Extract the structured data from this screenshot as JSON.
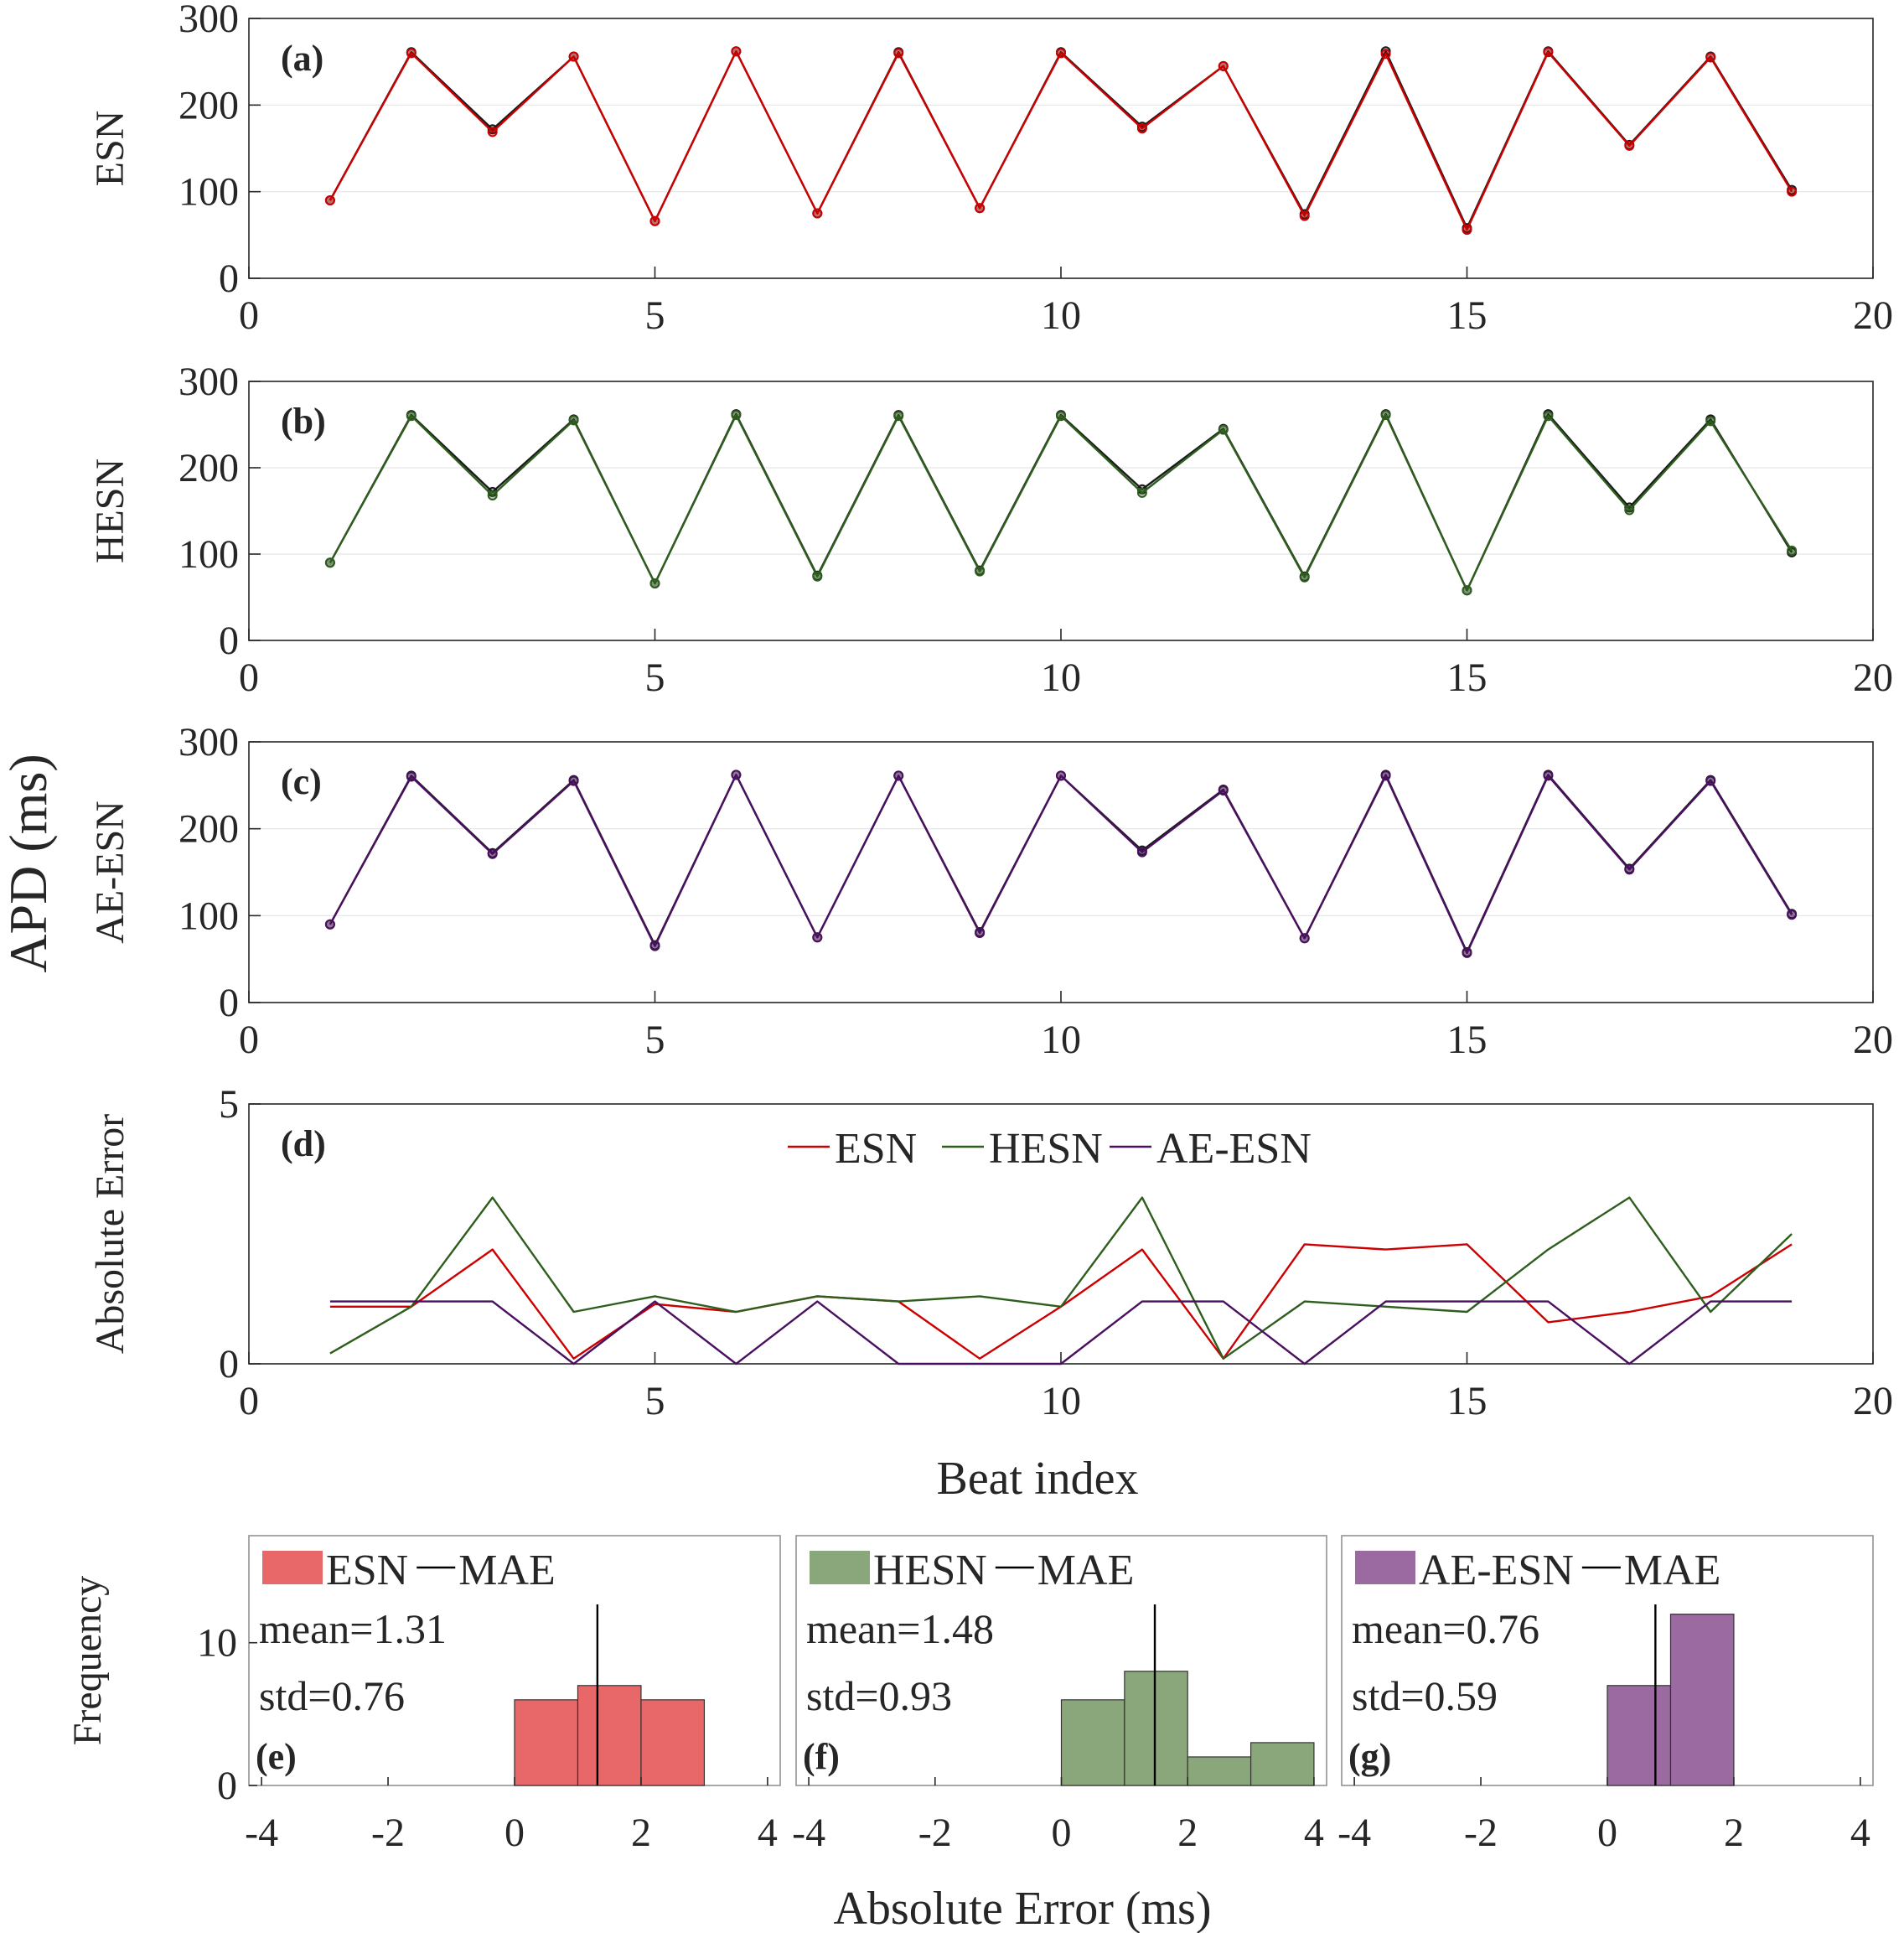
{
  "figure": {
    "shared_ylabel": "APD (ms)",
    "beat_xlabel": "Beat index",
    "hist_xlabel": "Absolute Error (ms)"
  },
  "colors": {
    "esn": "#cc0000",
    "hesn": "#2e5e1e",
    "aeesn": "#4a1060",
    "true": "#1a1a1a",
    "esn_fill": "#e8686a",
    "hesn_fill": "#8aa67b",
    "aeesn_fill": "#9b6aa1",
    "axis": "#262626",
    "grid": "#262626"
  },
  "chart_data": [
    {
      "type": "line",
      "panel": "(a)",
      "ylabel": "ESN",
      "xlim": [
        0,
        20
      ],
      "ylim": [
        0,
        300
      ],
      "xticks": [
        0,
        5,
        10,
        15,
        20
      ],
      "yticks": [
        0,
        100,
        200,
        300
      ],
      "x": [
        1,
        2,
        3,
        4,
        5,
        6,
        7,
        8,
        9,
        10,
        11,
        12,
        13,
        14,
        15,
        16,
        17,
        18,
        19
      ],
      "series": [
        {
          "role": "true",
          "color": "#1a1a1a",
          "values": [
            90,
            261,
            172,
            256,
            66,
            262,
            75,
            261,
            81,
            261,
            175,
            245,
            74,
            262,
            58,
            262,
            154,
            256,
            102
          ]
        },
        {
          "role": "model",
          "color": "#cc0000",
          "values": [
            90,
            260,
            169,
            256,
            66,
            262,
            75,
            260,
            81,
            260,
            173,
            245,
            72,
            259,
            56,
            261,
            153,
            255,
            100
          ]
        }
      ]
    },
    {
      "type": "line",
      "panel": "(b)",
      "ylabel": "HESN",
      "xlim": [
        0,
        20
      ],
      "ylim": [
        0,
        300
      ],
      "xticks": [
        0,
        5,
        10,
        15,
        20
      ],
      "yticks": [
        0,
        100,
        200,
        300
      ],
      "x": [
        1,
        2,
        3,
        4,
        5,
        6,
        7,
        8,
        9,
        10,
        11,
        12,
        13,
        14,
        15,
        16,
        17,
        18,
        19
      ],
      "series": [
        {
          "role": "true",
          "color": "#1a1a1a",
          "values": [
            90,
            261,
            172,
            256,
            66,
            262,
            75,
            261,
            81,
            261,
            175,
            245,
            74,
            262,
            58,
            262,
            154,
            256,
            102
          ]
        },
        {
          "role": "model",
          "color": "#2e5e1e",
          "values": [
            90,
            260,
            168,
            255,
            66,
            261,
            74,
            260,
            80,
            260,
            171,
            244,
            73,
            261,
            58,
            260,
            151,
            254,
            104
          ]
        }
      ]
    },
    {
      "type": "line",
      "panel": "(c)",
      "ylabel": "AE-ESN",
      "xlim": [
        0,
        20
      ],
      "ylim": [
        0,
        300
      ],
      "xticks": [
        0,
        5,
        10,
        15,
        20
      ],
      "yticks": [
        0,
        100,
        200,
        300
      ],
      "x": [
        1,
        2,
        3,
        4,
        5,
        6,
        7,
        8,
        9,
        10,
        11,
        12,
        13,
        14,
        15,
        16,
        17,
        18,
        19
      ],
      "series": [
        {
          "role": "true",
          "color": "#1a1a1a",
          "values": [
            90,
            261,
            172,
            256,
            66,
            262,
            75,
            261,
            81,
            261,
            175,
            245,
            74,
            262,
            58,
            262,
            154,
            256,
            102
          ]
        },
        {
          "role": "model",
          "color": "#4a1060",
          "values": [
            90,
            260,
            171,
            255,
            65,
            262,
            75,
            261,
            80,
            261,
            173,
            244,
            74,
            261,
            57,
            261,
            153,
            255,
            101
          ]
        }
      ]
    },
    {
      "type": "line",
      "panel": "(d)",
      "ylabel": "Absolute Error",
      "xlabel": "Beat index",
      "xlim": [
        0,
        20
      ],
      "ylim": [
        0,
        5
      ],
      "xticks": [
        0,
        5,
        10,
        15,
        20
      ],
      "yticks": [
        0,
        5
      ],
      "legend": "top-center",
      "x": [
        1,
        2,
        3,
        4,
        5,
        6,
        7,
        8,
        9,
        10,
        11,
        12,
        13,
        14,
        15,
        16,
        17,
        18,
        19
      ],
      "series": [
        {
          "name": "ESN",
          "color": "#cc0000",
          "values": [
            1.1,
            1.1,
            2.2,
            0.1,
            1.15,
            1.0,
            1.3,
            1.2,
            0.1,
            1.1,
            2.2,
            0.1,
            2.3,
            2.2,
            2.3,
            0.8,
            1.0,
            1.3,
            2.3
          ]
        },
        {
          "name": "HESN",
          "color": "#2e5e1e",
          "values": [
            0.2,
            1.1,
            3.2,
            1.0,
            1.3,
            1.0,
            1.3,
            1.2,
            1.3,
            1.1,
            3.2,
            0.1,
            1.2,
            1.1,
            1.0,
            2.2,
            3.2,
            1.0,
            2.5
          ]
        },
        {
          "name": "AE-ESN",
          "color": "#4a1060",
          "values": [
            1.2,
            1.2,
            1.2,
            0.0,
            1.2,
            0.0,
            1.2,
            0.0,
            0.0,
            0.0,
            1.2,
            1.2,
            0.0,
            1.2,
            1.2,
            1.2,
            0.0,
            1.2,
            1.2
          ]
        }
      ]
    },
    {
      "type": "bar",
      "panel": "(e)",
      "ylabel": "Frequency",
      "xlim": [
        -4.2,
        4.2
      ],
      "ylim": [
        0,
        17.5
      ],
      "xticks": [
        -4,
        -2,
        0,
        2,
        4
      ],
      "yticks": [
        0,
        10
      ],
      "bin_edges": [
        0,
        1,
        2,
        3
      ],
      "values": [
        6,
        7,
        6
      ],
      "fill": "#e8686a",
      "mean_line": 1.31,
      "legend": [
        "ESN",
        "MAE"
      ],
      "stats": [
        "mean=1.31",
        "std=0.76"
      ]
    },
    {
      "type": "bar",
      "panel": "(f)",
      "xlim": [
        -4.2,
        4.2
      ],
      "ylim": [
        0,
        17.5
      ],
      "xticks": [
        -4,
        -2,
        0,
        2,
        4
      ],
      "yticks": [
        0,
        10
      ],
      "bin_edges": [
        0,
        1,
        2,
        3,
        4
      ],
      "values": [
        6,
        8,
        2,
        3
      ],
      "fill": "#8aa67b",
      "mean_line": 1.48,
      "legend": [
        "HESN",
        "MAE"
      ],
      "stats": [
        "mean=1.48",
        "std=0.93"
      ]
    },
    {
      "type": "bar",
      "panel": "(g)",
      "xlim": [
        -4.2,
        4.2
      ],
      "ylim": [
        0,
        17.5
      ],
      "xticks": [
        -4,
        -2,
        0,
        2,
        4
      ],
      "yticks": [
        0,
        10
      ],
      "bin_edges": [
        0,
        1,
        2
      ],
      "values": [
        7,
        12
      ],
      "fill": "#9b6aa1",
      "mean_line": 0.76,
      "legend": [
        "AE-ESN",
        "MAE"
      ],
      "stats": [
        "mean=0.76",
        "std=0.59"
      ]
    }
  ]
}
